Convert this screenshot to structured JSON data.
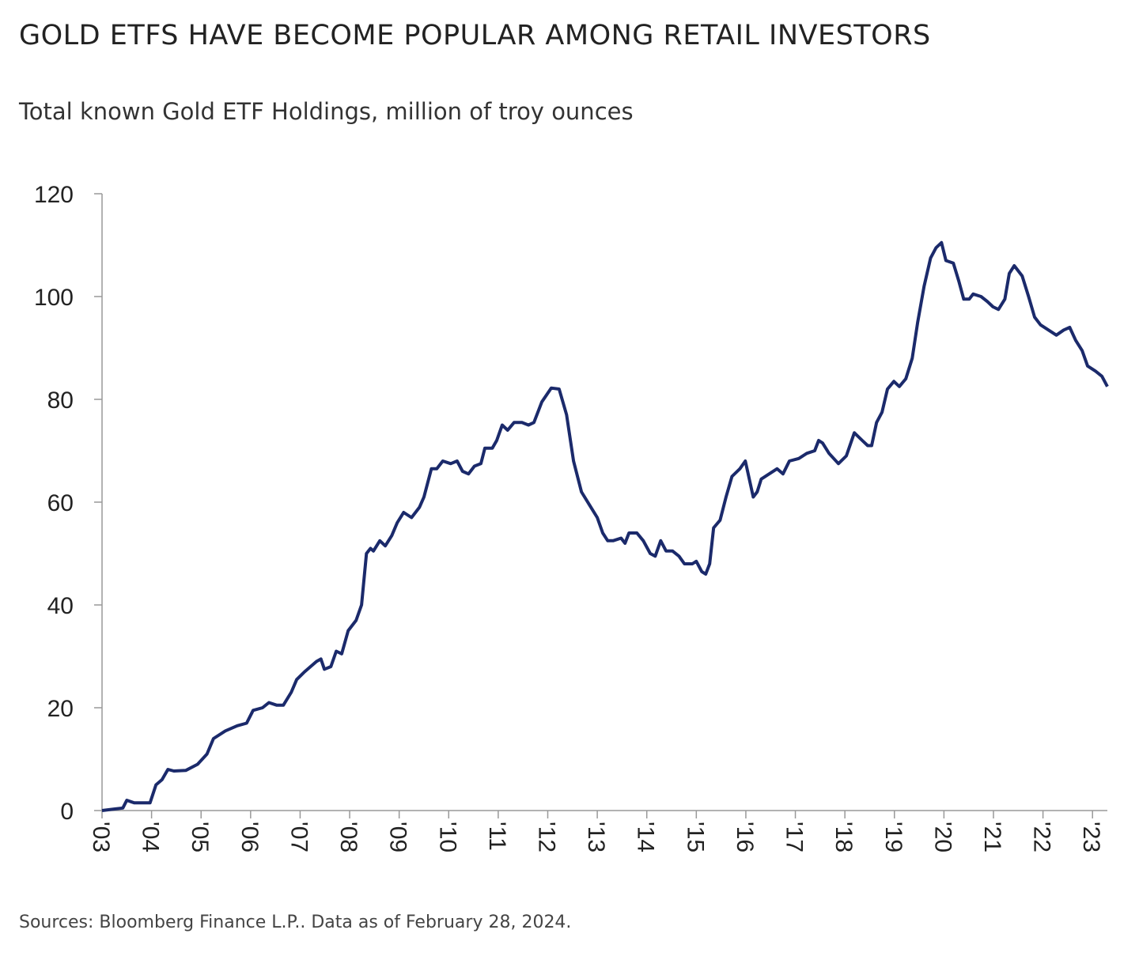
{
  "chart_data": {
    "type": "line",
    "title": "GOLD ETFS HAVE BECOME POPULAR AMONG RETAIL INVESTORS",
    "subtitle": "Total known Gold ETF Holdings, million of troy ounces",
    "source": "Sources: Bloomberg Finance L.P.. Data as of February 28, 2024.",
    "x": [
      2003,
      2003.26,
      2003.42,
      2003.5,
      2003.65,
      2003.97,
      2004.09,
      2004.21,
      2004.33,
      2004.45,
      2004.69,
      2004.93,
      2005.12,
      2005.25,
      2005.49,
      2005.73,
      2005.92,
      2006.05,
      2006.24,
      2006.37,
      2006.53,
      2006.66,
      2006.82,
      2006.93,
      2007.09,
      2007.33,
      2007.42,
      2007.49,
      2007.62,
      2007.73,
      2007.84,
      2007.97,
      2008.13,
      2008.24,
      2008.34,
      2008.42,
      2008.48,
      2008.61,
      2008.72,
      2008.85,
      2008.96,
      2009.09,
      2009.25,
      2009.41,
      2009.5,
      2009.65,
      2009.76,
      2009.88,
      2010.04,
      2010.17,
      2010.28,
      2010.4,
      2010.52,
      2010.65,
      2010.73,
      2010.88,
      2010.97,
      2011.08,
      2011.19,
      2011.32,
      2011.48,
      2011.61,
      2011.72,
      2011.88,
      2012.07,
      2012.23,
      2012.38,
      2012.52,
      2012.68,
      2012.84,
      2013,
      2013.11,
      2013.21,
      2013.32,
      2013.48,
      2013.56,
      2013.64,
      2013.8,
      2013.93,
      2014.07,
      2014.17,
      2014.28,
      2014.39,
      2014.52,
      2014.65,
      2014.76,
      2014.92,
      2015,
      2015.11,
      2015.19,
      2015.27,
      2015.35,
      2015.48,
      2015.6,
      2015.72,
      2015.88,
      2015.99,
      2016.15,
      2016.23,
      2016.31,
      2016.47,
      2016.63,
      2016.75,
      2016.88,
      2017.07,
      2017.23,
      2017.39,
      2017.47,
      2017.55,
      2017.68,
      2017.87,
      2018.03,
      2018.19,
      2018.35,
      2018.46,
      2018.54,
      2018.64,
      2018.75,
      2018.86,
      2018.99,
      2019.1,
      2019.23,
      2019.36,
      2019.47,
      2019.6,
      2019.73,
      2019.84,
      2019.95,
      2020.04,
      2020.19,
      2020.3,
      2020.4,
      2020.51,
      2020.59,
      2020.75,
      2020.88,
      2020.99,
      2021.1,
      2021.23,
      2021.32,
      2021.42,
      2021.58,
      2021.71,
      2021.83,
      2021.95,
      2022.11,
      2022.27,
      2022.42,
      2022.54,
      2022.66,
      2022.79,
      2022.9,
      2023.06,
      2023.19,
      2023.3
    ],
    "series": [
      {
        "color": "#1b2a6b",
        "values": [
          0,
          0.3,
          0.5,
          2,
          1.5,
          1.5,
          5,
          6,
          8,
          7.7,
          7.8,
          9,
          11,
          14,
          15.5,
          16.5,
          17,
          19.5,
          20,
          21,
          20.5,
          20.5,
          23,
          25.5,
          27,
          29,
          29.5,
          27.5,
          28,
          31,
          30.5,
          35,
          37,
          40,
          50,
          51,
          50.5,
          52.5,
          51.5,
          53.5,
          56,
          58,
          57,
          59,
          61,
          66.5,
          66.5,
          68,
          67.5,
          68,
          66,
          65.5,
          67,
          67.5,
          70.5,
          70.5,
          72,
          75,
          74,
          75.5,
          75.5,
          75,
          75.5,
          79.5,
          82.2,
          82,
          77,
          68,
          62,
          59.5,
          57,
          54,
          52.5,
          52.5,
          53,
          52,
          54,
          54,
          52.5,
          50,
          49.5,
          52.5,
          50.5,
          50.5,
          49.5,
          48,
          48,
          48.5,
          46.5,
          46,
          48,
          55,
          56.5,
          61,
          65,
          66.5,
          68,
          61,
          62,
          64.5,
          65.5,
          66.5,
          65.5,
          68,
          68.5,
          69.5,
          70,
          72,
          71.5,
          69.5,
          67.5,
          69,
          73.5,
          72,
          71,
          71,
          75.5,
          77.5,
          82,
          83.5,
          82.5,
          84,
          88,
          95,
          102,
          107.5,
          109.5,
          110.5,
          107,
          106.5,
          103,
          99.5,
          99.5,
          100.5,
          100,
          99,
          98,
          97.5,
          99.5,
          104.5,
          106,
          104,
          100,
          96,
          94.5,
          93.5,
          92.5,
          93.5,
          94,
          91.5,
          89.5,
          86.5,
          85.5,
          84.5,
          82.5
        ]
      }
    ],
    "xlim": [
      2003,
      2023.3
    ],
    "xticks": [
      {
        "value": 2003,
        "label": "'03"
      },
      {
        "value": 2004,
        "label": "'04"
      },
      {
        "value": 2005,
        "label": "'05"
      },
      {
        "value": 2006,
        "label": "'06"
      },
      {
        "value": 2007,
        "label": "'07"
      },
      {
        "value": 2008,
        "label": "'08"
      },
      {
        "value": 2009,
        "label": "'09"
      },
      {
        "value": 2010,
        "label": "'10"
      },
      {
        "value": 2011,
        "label": "'11"
      },
      {
        "value": 2012,
        "label": "'12"
      },
      {
        "value": 2013,
        "label": "'13"
      },
      {
        "value": 2014,
        "label": "'14"
      },
      {
        "value": 2015,
        "label": "'15"
      },
      {
        "value": 2016,
        "label": "'16"
      },
      {
        "value": 2017,
        "label": "'17"
      },
      {
        "value": 2018,
        "label": "'18"
      },
      {
        "value": 2019,
        "label": "'19"
      },
      {
        "value": 2020,
        "label": "'20"
      },
      {
        "value": 2021,
        "label": "'21"
      },
      {
        "value": 2022,
        "label": "'22"
      },
      {
        "value": 2023,
        "label": "'23"
      }
    ],
    "ylim": [
      0,
      120
    ],
    "yticks": [
      0,
      20,
      40,
      60,
      80,
      100,
      120
    ]
  }
}
